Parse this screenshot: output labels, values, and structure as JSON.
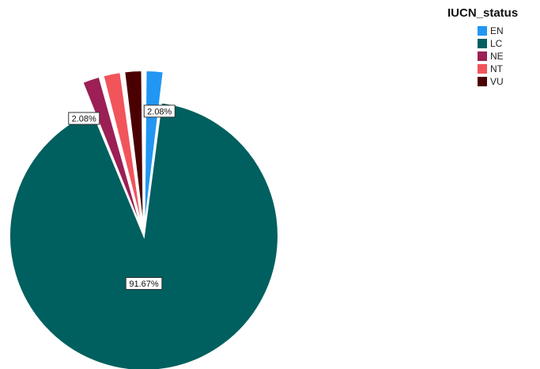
{
  "chart_data": {
    "type": "pie",
    "legend_title": "IUCN_status",
    "legend_position": "top-right",
    "slices": [
      {
        "name": "EN",
        "value": 2.08,
        "color": "#2196f3",
        "label": "2.08%",
        "exploded": true
      },
      {
        "name": "LC",
        "value": 91.67,
        "color": "#005f5f",
        "label": "91.67%",
        "exploded": false
      },
      {
        "name": "NE",
        "value": 2.08,
        "color": "#9c1f55",
        "label": "2.08%",
        "exploded": true
      },
      {
        "name": "NT",
        "value": 2.08,
        "color": "#f2545b",
        "label": "",
        "exploded": true
      },
      {
        "name": "VU",
        "value": 2.08,
        "color": "#4a0000",
        "label": "",
        "exploded": true
      }
    ]
  }
}
